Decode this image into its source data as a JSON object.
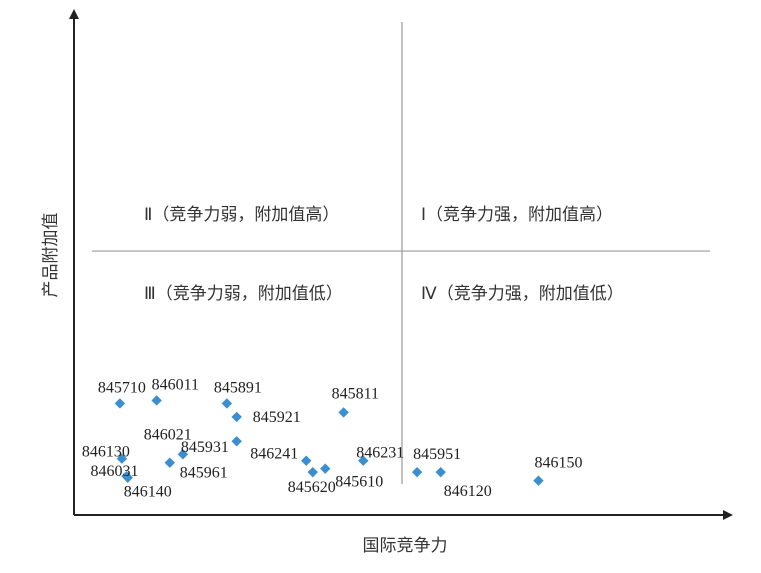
{
  "chart_data": {
    "type": "scatter",
    "title": "",
    "xlabel": "国际竞争力",
    "ylabel": "产品附加值",
    "xlim": [
      0,
      100
    ],
    "ylim": [
      0,
      100
    ],
    "grid": false,
    "legend": "none",
    "divider": {
      "x": 50,
      "y": 53
    },
    "quadrants": [
      {
        "label": "Ⅱ（竞争力弱，附加值高）",
        "pos": "upper-left"
      },
      {
        "label": "Ⅰ（竞争力强，附加值高）",
        "pos": "upper-right"
      },
      {
        "label": "Ⅲ（竞争力弱，附加值低）",
        "pos": "lower-left"
      },
      {
        "label": "Ⅳ（竞争力强，附加值低）",
        "pos": "lower-right"
      }
    ],
    "marker_color": "#3B8FD0",
    "points": [
      {
        "label": "845710",
        "x": 7.0,
        "y": 22.4
      },
      {
        "label": "846011",
        "x": 12.6,
        "y": 23.0
      },
      {
        "label": "845891",
        "x": 23.3,
        "y": 22.4
      },
      {
        "label": "845921",
        "x": 24.8,
        "y": 19.7
      },
      {
        "label": "845811",
        "x": 41.1,
        "y": 20.6
      },
      {
        "label": "846021",
        "x": 24.8,
        "y": 14.8
      },
      {
        "label": "846130",
        "x": 7.3,
        "y": 11.3
      },
      {
        "label": "845931",
        "x": 16.6,
        "y": 12.2
      },
      {
        "label": "846241",
        "x": 35.4,
        "y": 10.9
      },
      {
        "label": "846231",
        "x": 44.1,
        "y": 10.9
      },
      {
        "label": "846031",
        "x": 8.0,
        "y": 7.8
      },
      {
        "label": "846140",
        "x": 8.2,
        "y": 7.5
      },
      {
        "label": "845961",
        "x": 14.6,
        "y": 10.5
      },
      {
        "label": "845620",
        "x": 36.4,
        "y": 8.6
      },
      {
        "label": "845610",
        "x": 38.3,
        "y": 9.3
      },
      {
        "label": "845951",
        "x": 52.3,
        "y": 8.6
      },
      {
        "label": "846120",
        "x": 55.9,
        "y": 8.6
      },
      {
        "label": "846150",
        "x": 70.8,
        "y": 6.9
      }
    ]
  }
}
